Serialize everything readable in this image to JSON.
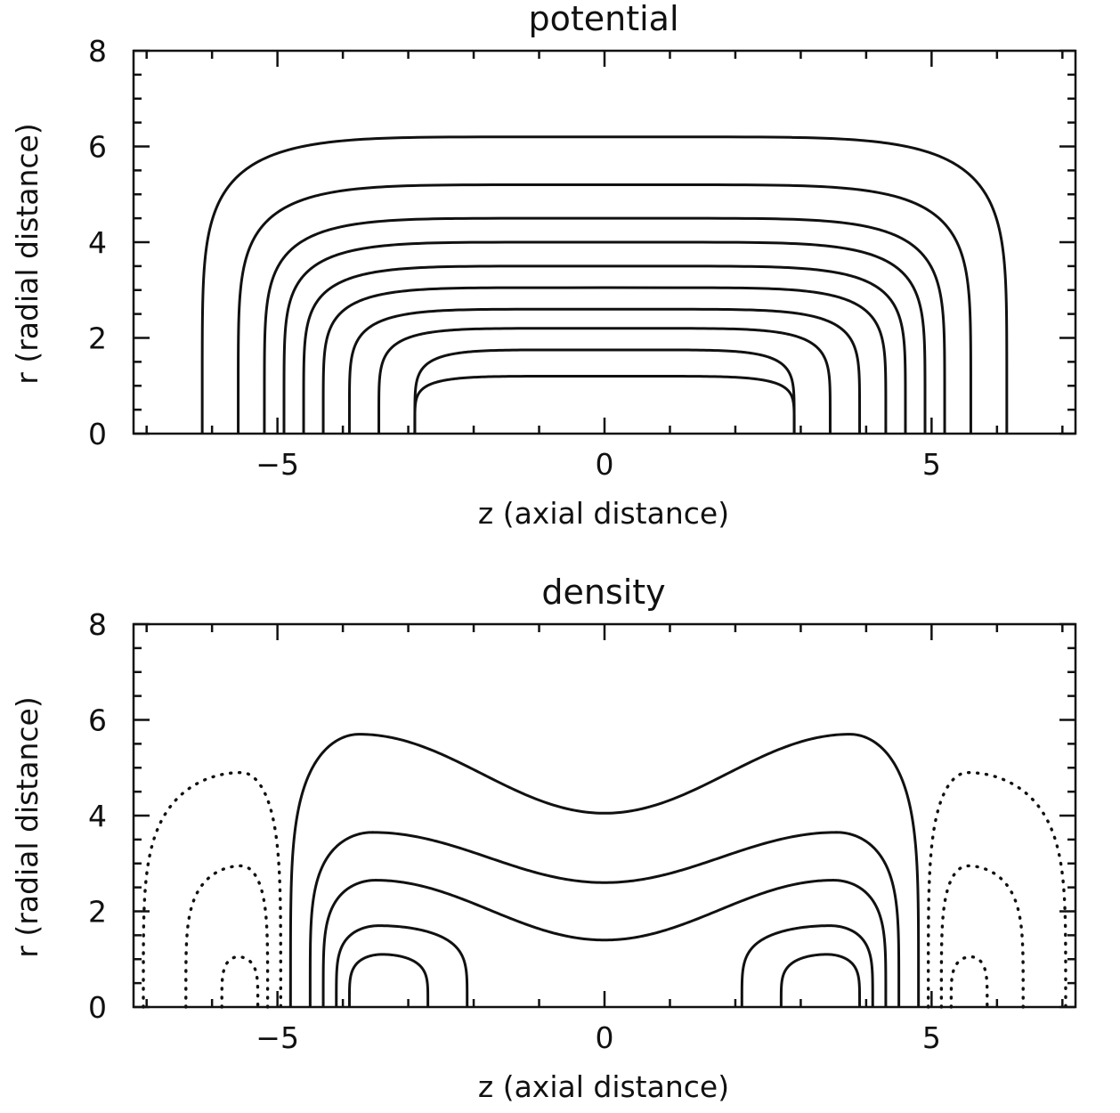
{
  "chart_data": [
    {
      "type": "contour",
      "title": "potential",
      "xlabel": "z (axial distance)",
      "ylabel": "r (radial distance)",
      "xlim": [
        -7.2,
        7.2
      ],
      "ylim": [
        0,
        8
      ],
      "xticks": [
        -5,
        0,
        5
      ],
      "yticks": [
        0,
        2,
        4,
        6,
        8
      ],
      "line_color": "#111111",
      "levels": [
        {
          "style": "solid",
          "half_width": 6.15,
          "height": 6.2,
          "center_z": 0
        },
        {
          "style": "solid",
          "half_width": 5.6,
          "height": 5.2,
          "center_z": 0
        },
        {
          "style": "solid",
          "half_width": 5.2,
          "height": 4.5,
          "center_z": 0
        },
        {
          "style": "solid",
          "half_width": 4.9,
          "height": 4.0,
          "center_z": 0
        },
        {
          "style": "solid",
          "half_width": 4.6,
          "height": 3.5,
          "center_z": 0
        },
        {
          "style": "solid",
          "half_width": 4.3,
          "height": 3.05,
          "center_z": 0
        },
        {
          "style": "solid",
          "half_width": 3.9,
          "height": 2.6,
          "center_z": 0
        },
        {
          "style": "solid",
          "half_width": 3.45,
          "height": 2.2,
          "center_z": 0
        },
        {
          "style": "solid",
          "half_width": 2.9,
          "height": 1.75,
          "center_z": 0
        },
        {
          "style": "solid",
          "half_width": 2.9,
          "height": 1.2,
          "center_z": 0
        }
      ]
    },
    {
      "type": "contour",
      "title": "density",
      "xlabel": "z (axial distance)",
      "ylabel": "r (radial distance)",
      "xlim": [
        -7.2,
        7.2
      ],
      "ylim": [
        0,
        8
      ],
      "xticks": [
        -5,
        0,
        5
      ],
      "yticks": [
        0,
        2,
        4,
        6,
        8
      ],
      "line_color": "#111111",
      "levels": [
        {
          "style": "solid",
          "kind": "saddle",
          "outer_z": 4.8,
          "peak_z": 3.75,
          "peak_r": 5.7,
          "center_r": 4.05
        },
        {
          "style": "solid",
          "kind": "saddle",
          "outer_z": 4.5,
          "peak_z": 3.55,
          "peak_r": 3.65,
          "center_r": 2.6
        },
        {
          "style": "solid",
          "kind": "saddle",
          "outer_z": 4.3,
          "peak_z": 3.5,
          "peak_r": 2.65,
          "center_r": 1.4
        },
        {
          "style": "solid",
          "kind": "lobe",
          "center_z": 3.45,
          "inner_z": 2.1,
          "outer_z": 4.1,
          "peak_r": 1.7
        },
        {
          "style": "solid",
          "kind": "lobe",
          "center_z": 3.4,
          "inner_z": 2.7,
          "outer_z": 3.9,
          "peak_r": 1.1
        },
        {
          "style": "dotted",
          "kind": "lobe",
          "center_z": 5.55,
          "inner_z": 4.95,
          "outer_z": 7.05,
          "peak_r": 4.9
        },
        {
          "style": "dotted",
          "kind": "lobe",
          "center_z": 5.55,
          "inner_z": 5.15,
          "outer_z": 6.4,
          "peak_r": 2.95
        },
        {
          "style": "dotted",
          "kind": "lobe",
          "center_z": 5.6,
          "inner_z": 5.3,
          "outer_z": 5.85,
          "peak_r": 1.05
        }
      ]
    }
  ]
}
